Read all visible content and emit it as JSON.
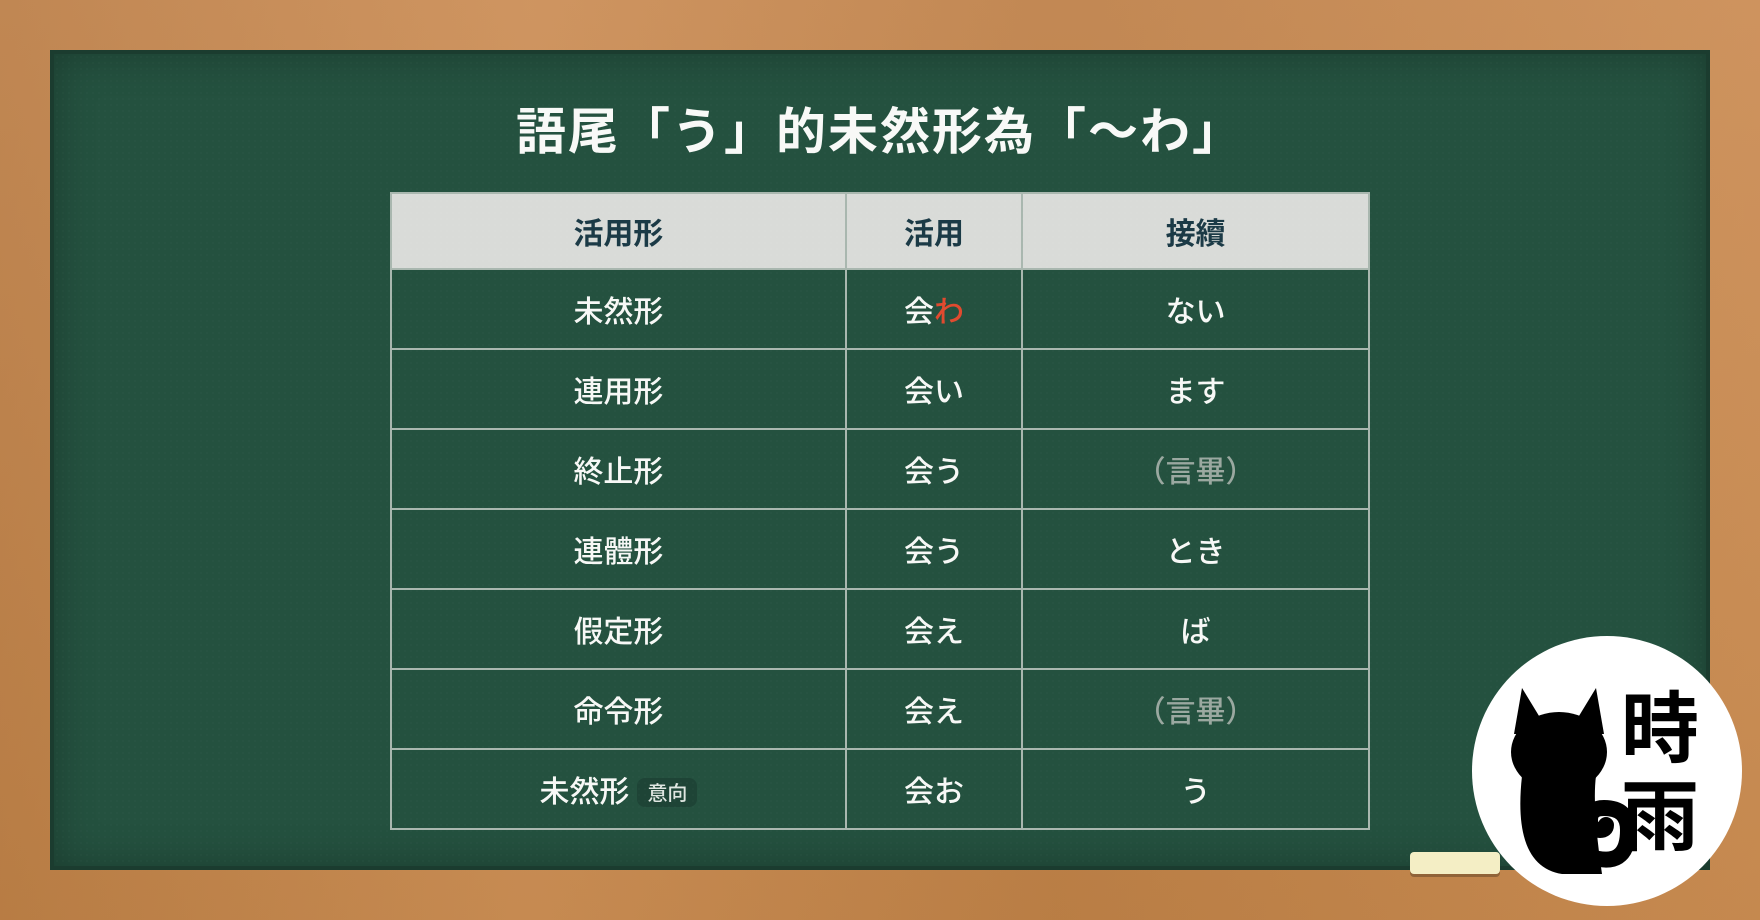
{
  "title": "語尾「う」的未然形為「～わ」",
  "colors": {
    "board_bg": "#24513f",
    "frame_bg": "#c88a54",
    "header_bg": "#d9dbd8",
    "header_text": "#1b3a46",
    "cell_text": "#f7f8f6",
    "border": "#a9b7af",
    "highlight": "#e04a2f",
    "muted": "#9aa8a0",
    "badge_bg": "#1e4436",
    "logo_bg": "#ffffff",
    "chalk": "#f4eec5"
  },
  "table": {
    "headers": [
      "活用形",
      "活用",
      "接續"
    ],
    "rows": [
      {
        "form": "未然形",
        "badge": null,
        "conj_base": "会",
        "conj_suffix": "わ",
        "conj_highlight": true,
        "conn": "ない",
        "conn_muted": false
      },
      {
        "form": "連用形",
        "badge": null,
        "conj_base": "会い",
        "conj_suffix": "",
        "conj_highlight": false,
        "conn": "ます",
        "conn_muted": false
      },
      {
        "form": "終止形",
        "badge": null,
        "conj_base": "会う",
        "conj_suffix": "",
        "conj_highlight": false,
        "conn": "（言畢）",
        "conn_muted": true
      },
      {
        "form": "連體形",
        "badge": null,
        "conj_base": "会う",
        "conj_suffix": "",
        "conj_highlight": false,
        "conn": "とき",
        "conn_muted": false
      },
      {
        "form": "假定形",
        "badge": null,
        "conj_base": "会え",
        "conj_suffix": "",
        "conj_highlight": false,
        "conn": "ば",
        "conn_muted": false
      },
      {
        "form": "命令形",
        "badge": null,
        "conj_base": "会え",
        "conj_suffix": "",
        "conj_highlight": false,
        "conn": "（言畢）",
        "conn_muted": true
      },
      {
        "form": "未然形",
        "badge": "意向",
        "conj_base": "会お",
        "conj_suffix": "",
        "conj_highlight": false,
        "conn": "う",
        "conn_muted": false
      }
    ]
  },
  "logo": {
    "text_top": "時",
    "text_bottom": "雨"
  }
}
